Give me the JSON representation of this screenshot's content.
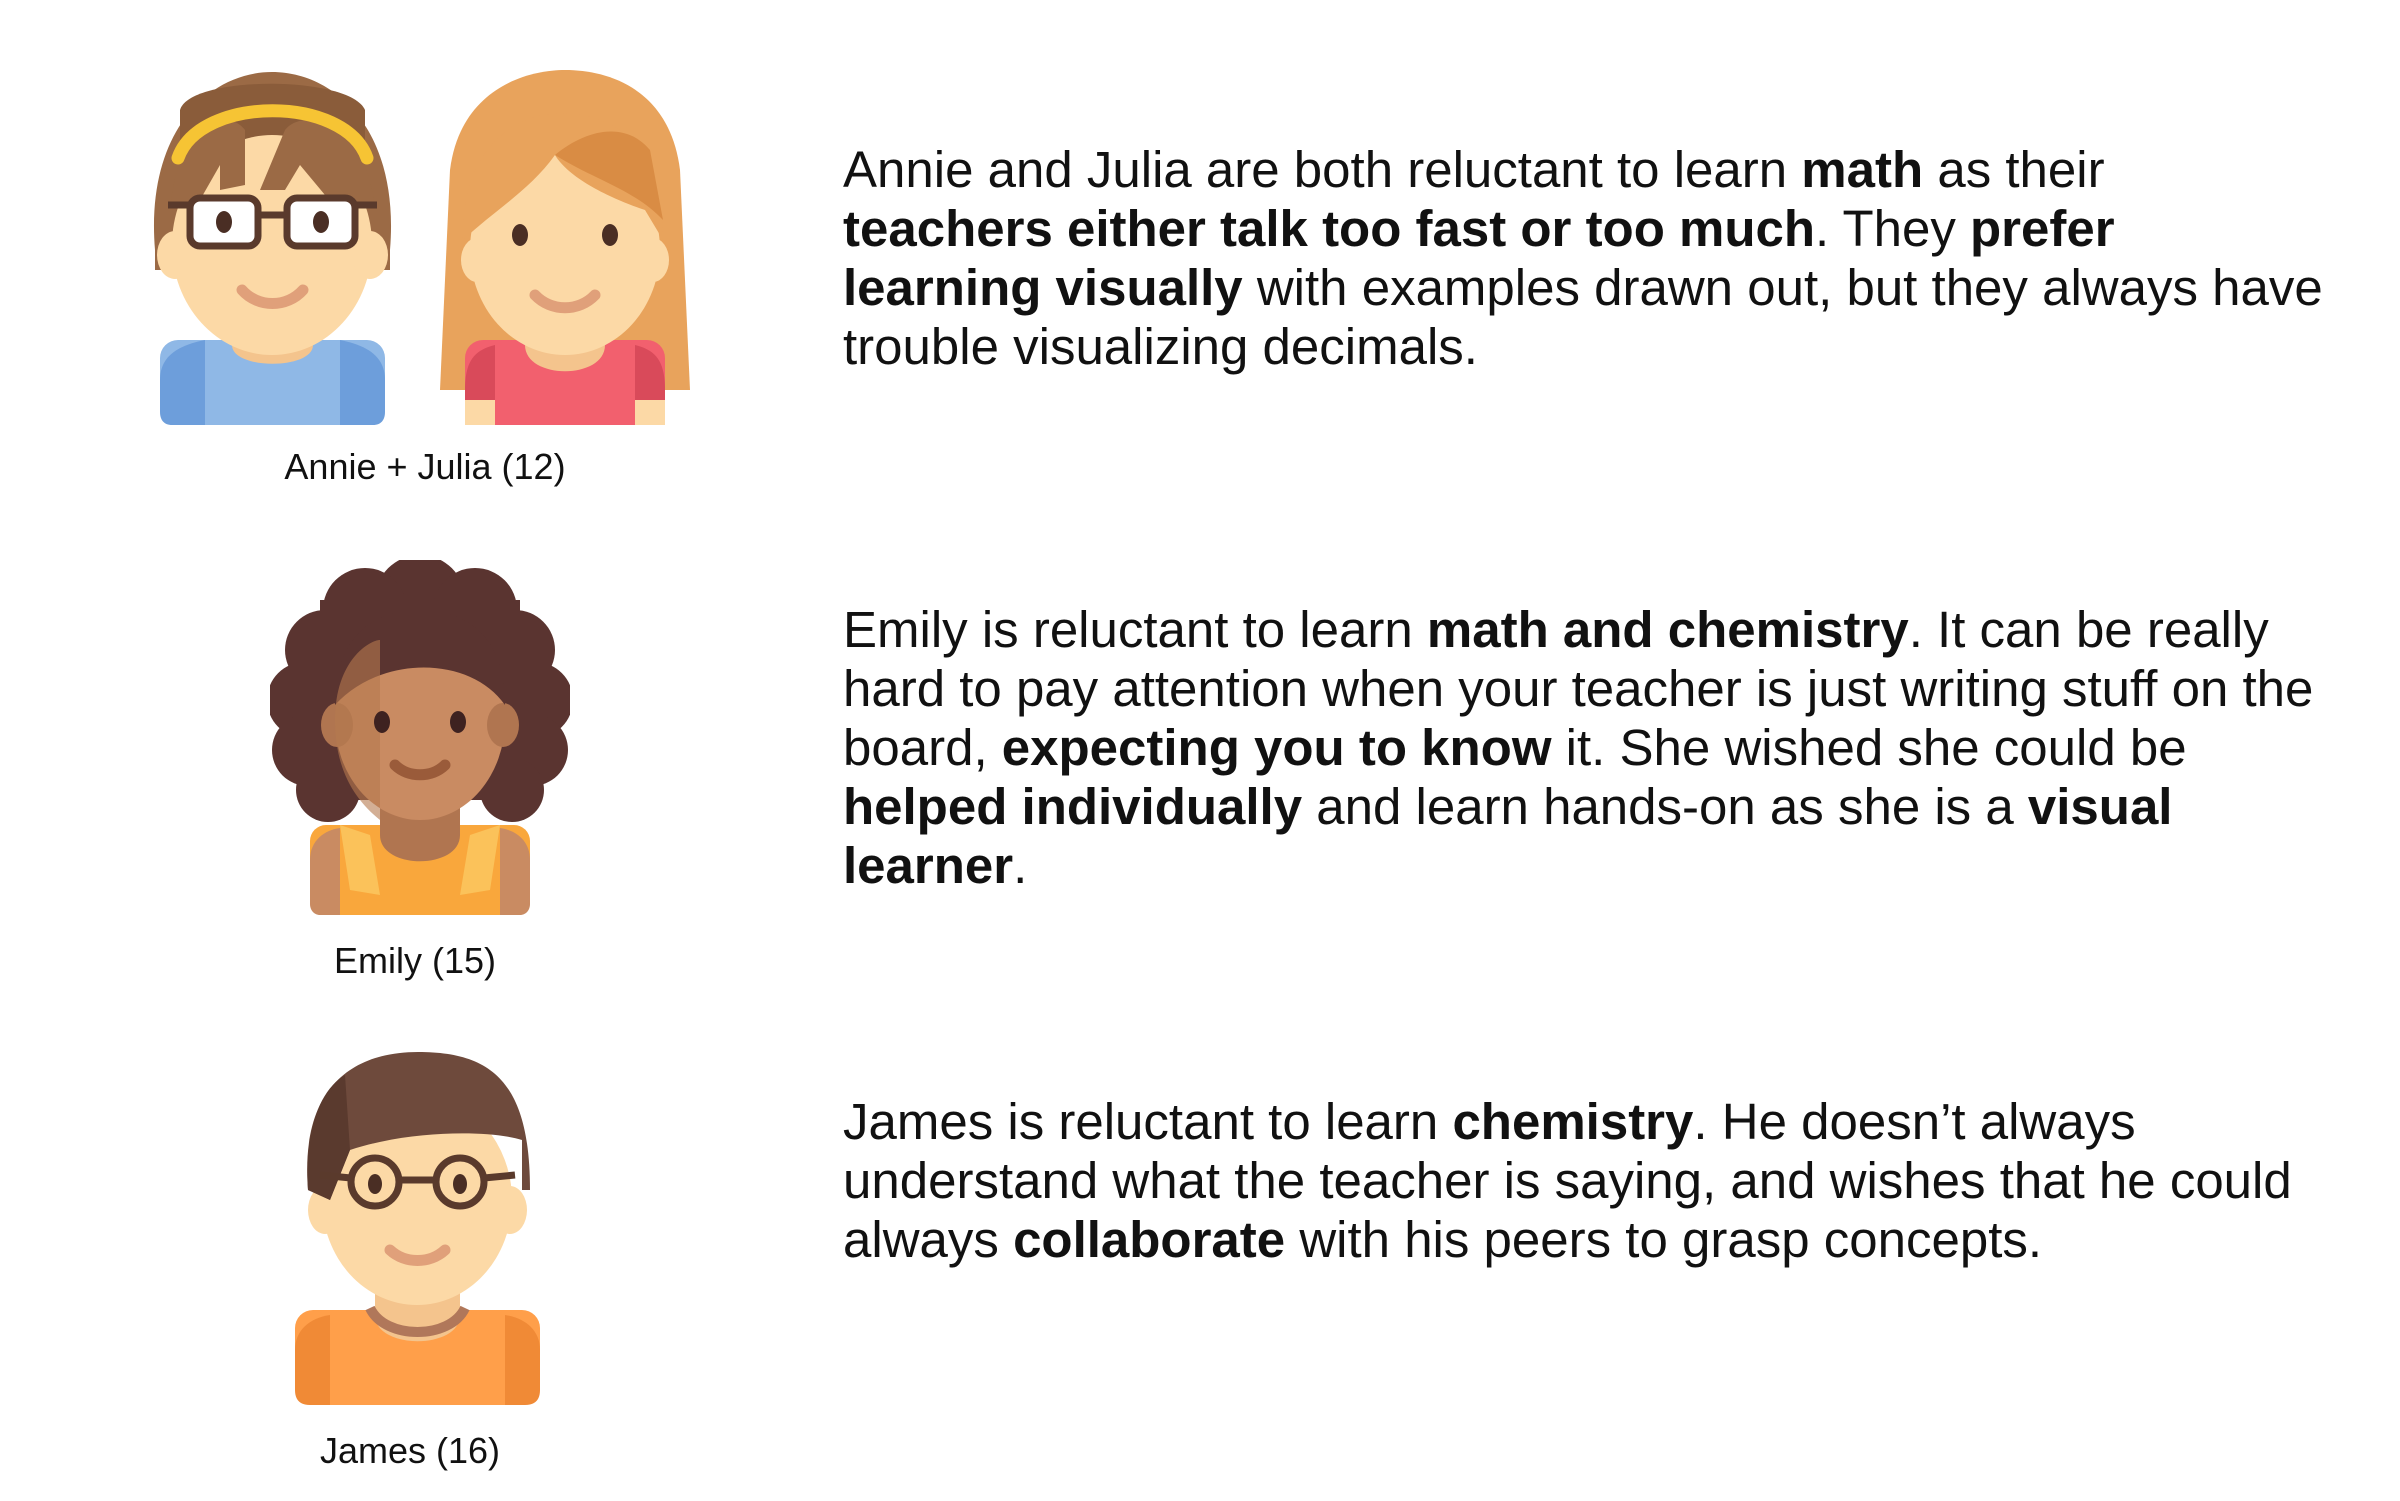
{
  "personas": [
    {
      "caption": "Annie + Julia (12)",
      "paragraph": [
        {
          "t": "Annie and Julia are both reluctant to learn ",
          "b": false
        },
        {
          "t": "math",
          "b": true
        },
        {
          "t": " as their ",
          "b": false
        },
        {
          "t": "teachers either talk too fast or too much",
          "b": true
        },
        {
          "t": ". They ",
          "b": false
        },
        {
          "t": "prefer learning visually",
          "b": true
        },
        {
          "t": " with examples drawn out, but they always have trouble visualizing decimals.",
          "b": false
        }
      ]
    },
    {
      "caption": "Emily (15)",
      "paragraph": [
        {
          "t": "Emily is reluctant to learn ",
          "b": false
        },
        {
          "t": "math and chemistry",
          "b": true
        },
        {
          "t": ". It can be really hard to pay attention when your teacher is just writing stuff on the board, ",
          "b": false
        },
        {
          "t": "expecting you to know",
          "b": true
        },
        {
          "t": " it. She wished she could be ",
          "b": false
        },
        {
          "t": "helped individually",
          "b": true
        },
        {
          "t": " and learn hands-on as she is a ",
          "b": false
        },
        {
          "t": "visual learner",
          "b": true
        },
        {
          "t": ".",
          "b": false
        }
      ]
    },
    {
      "caption": "James (16)",
      "paragraph": [
        {
          "t": "James is reluctant to learn ",
          "b": false
        },
        {
          "t": "chemistry",
          "b": true
        },
        {
          "t": ". He doesn’t always understand what the teacher is saying, and wishes that he could always ",
          "b": false
        },
        {
          "t": "collaborate",
          "b": true
        },
        {
          "t": " with his peers to grasp concepts.",
          "b": false
        }
      ]
    }
  ],
  "icons": [
    "girl-with-glasses-icon",
    "girl-with-long-hair-icon",
    "girl-with-curly-hair-icon",
    "boy-with-glasses-icon"
  ],
  "colors": {
    "text": "#111111",
    "hair_brown": "#9b6a45",
    "hair_ginger": "#e8a35c",
    "hair_curly": "#5a3430",
    "hair_james": "#6e4a3c",
    "skin_light": "#fcd9a6",
    "skin_dark": "#c98b62",
    "shirt_blue": "#8fb8e6",
    "shirt_pink": "#f2606e",
    "shirt_yellow": "#f9a73c",
    "shirt_orange": "#ff9f4a",
    "headband": "#f6c434"
  }
}
